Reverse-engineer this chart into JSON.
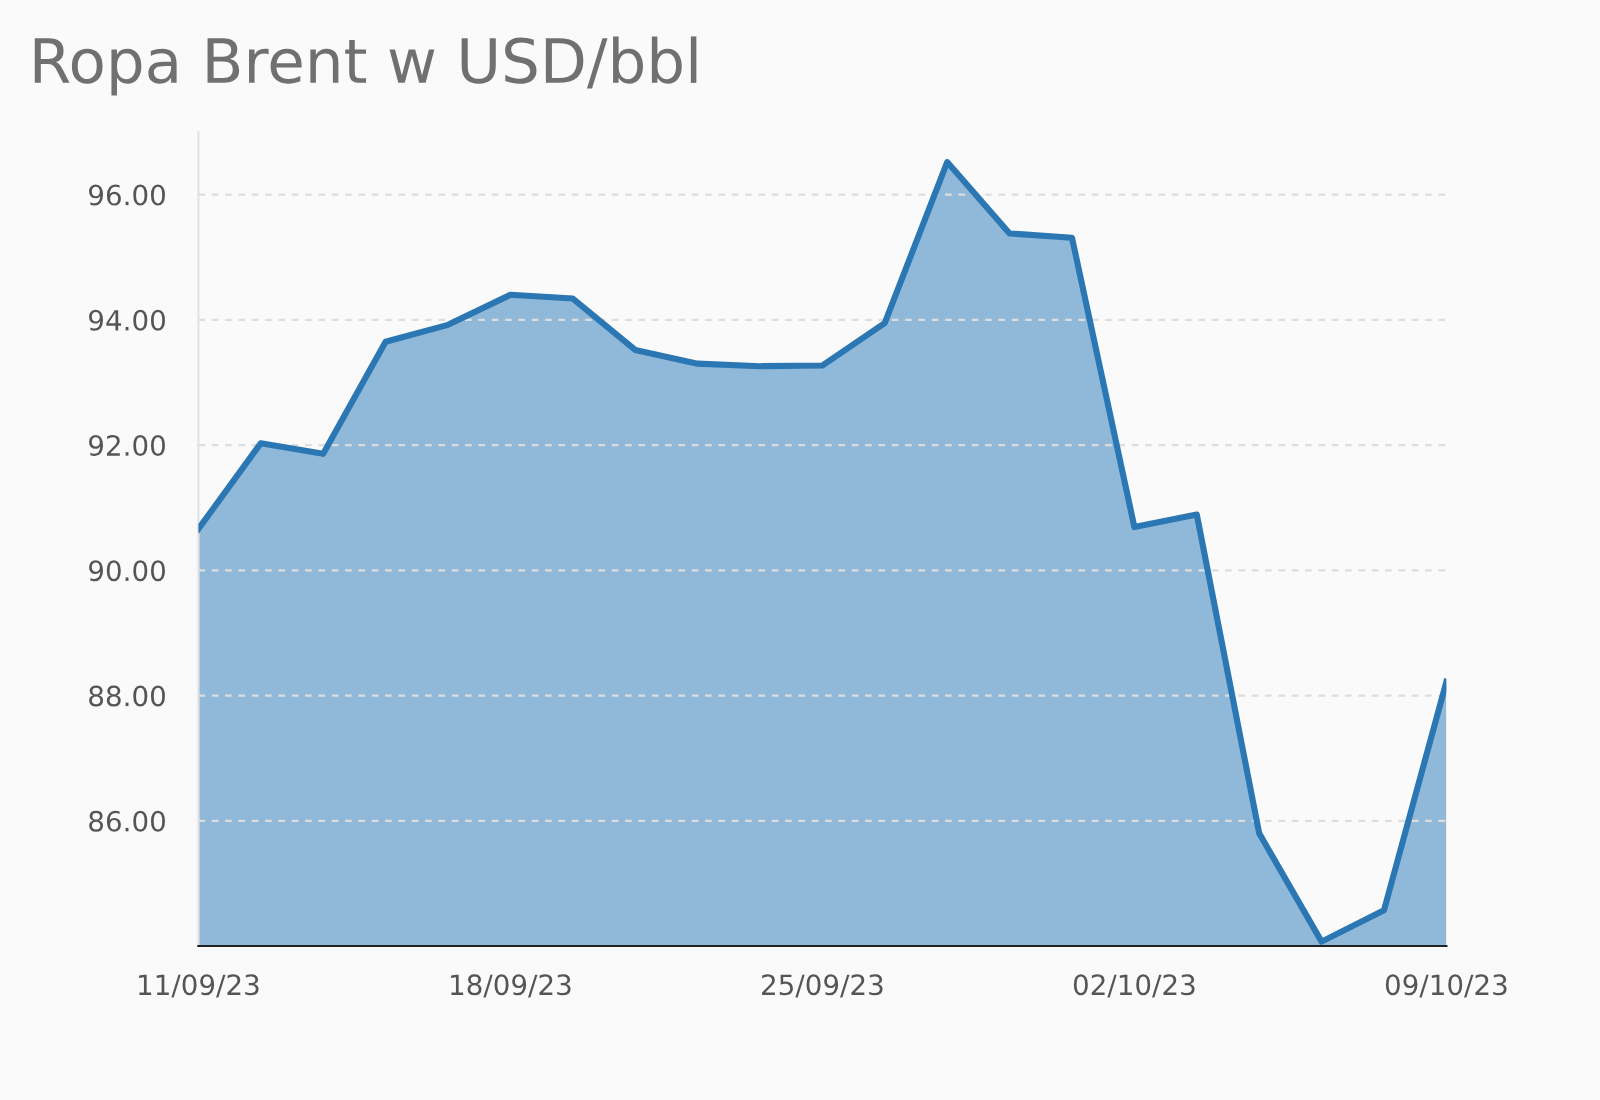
{
  "chart_data": {
    "type": "area",
    "title": "Ropa Brent w USD/bbl",
    "categories": [
      "11/09/23",
      null,
      null,
      null,
      null,
      "18/09/23",
      null,
      null,
      null,
      null,
      "25/09/23",
      null,
      null,
      null,
      null,
      "02/10/23",
      null,
      null,
      null,
      null,
      "09/10/23"
    ],
    "series": [
      {
        "color": "#2a77b4",
        "values": [
          90.66,
          92.03,
          91.86,
          93.65,
          93.92,
          94.4,
          94.34,
          93.52,
          93.3,
          93.26,
          93.27,
          93.95,
          96.52,
          95.38,
          95.31,
          90.69,
          90.89,
          85.8,
          84.07,
          84.57,
          88.22
        ]
      }
    ],
    "ylim": [
      84.0,
      97.0
    ],
    "yticks": [
      {
        "value": 86,
        "label": "86.00"
      },
      {
        "value": 88,
        "label": "88.00"
      },
      {
        "value": 90,
        "label": "90.00"
      },
      {
        "value": 92,
        "label": "92.00"
      },
      {
        "value": 94,
        "label": "94.00"
      },
      {
        "value": 96,
        "label": "96.00"
      }
    ],
    "grid": "y",
    "legend": false,
    "marker": "none",
    "line_style": "solid"
  }
}
